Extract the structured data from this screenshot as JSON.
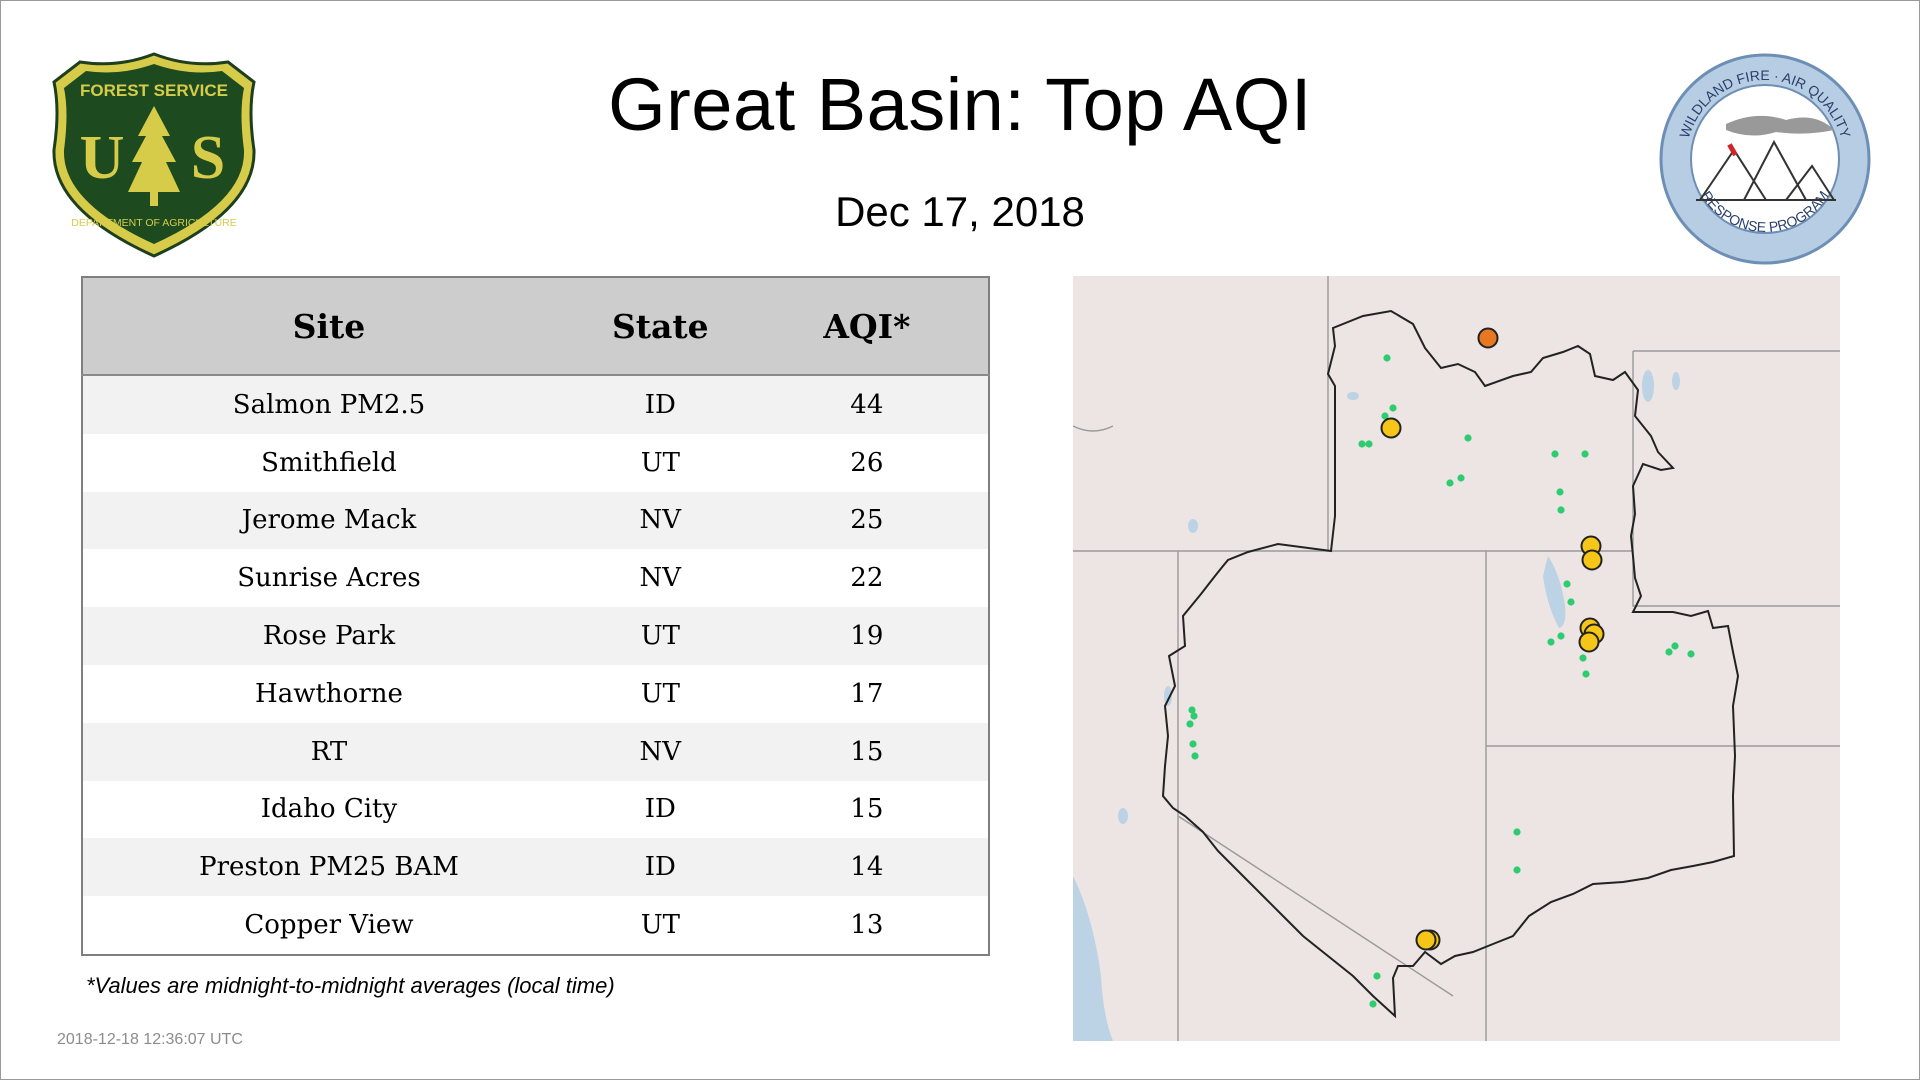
{
  "header": {
    "title": "Great Basin: Top AQI",
    "date": "Dec 17, 2018"
  },
  "logos": {
    "left": {
      "top_text": "FOREST SERVICE",
      "letters": "U S",
      "bottom_text": "DEPARTMENT OF AGRICULTURE"
    },
    "right": {
      "top_text": "WILDLAND FIRE · AIR QUALITY",
      "bottom_text": "RESPONSE PROGRAM"
    }
  },
  "table": {
    "headers": [
      "Site",
      "State",
      "AQI*"
    ],
    "rows": [
      {
        "site": "Salmon PM2.5",
        "state": "ID",
        "aqi": "44"
      },
      {
        "site": "Smithfield",
        "state": "UT",
        "aqi": "26"
      },
      {
        "site": "Jerome Mack",
        "state": "NV",
        "aqi": "25"
      },
      {
        "site": "Sunrise Acres",
        "state": "NV",
        "aqi": "22"
      },
      {
        "site": "Rose Park",
        "state": "UT",
        "aqi": "19"
      },
      {
        "site": "Hawthorne",
        "state": "UT",
        "aqi": "17"
      },
      {
        "site": "RT",
        "state": "NV",
        "aqi": "15"
      },
      {
        "site": "Idaho City",
        "state": "ID",
        "aqi": "15"
      },
      {
        "site": "Preston PM25 BAM",
        "state": "ID",
        "aqi": "14"
      },
      {
        "site": "Copper View",
        "state": "UT",
        "aqi": "13"
      }
    ]
  },
  "footnote": "*Values are midnight-to-midnight averages (local time)",
  "timestamp": "2018-12-18 12:36:07 UTC",
  "map": {
    "colors": {
      "good": "#2ecc71",
      "moderate": "#f5c518",
      "usg": "#e87722",
      "background": "#ede4e4",
      "water": "#bcd3e6",
      "region_outline": "#222222",
      "state_lines": "#9a9a9a"
    },
    "category_counts": {
      "good": 30,
      "moderate": 8,
      "usg": 1
    }
  }
}
